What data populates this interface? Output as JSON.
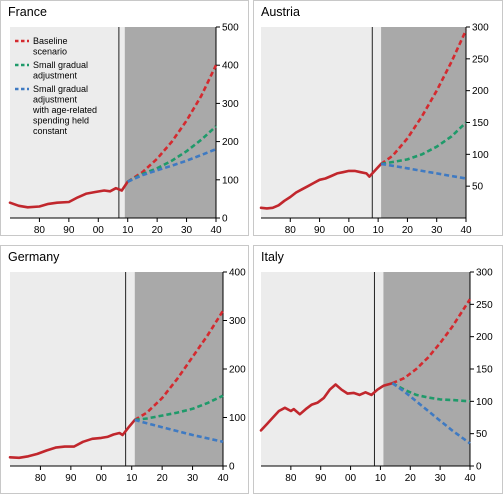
{
  "colors": {
    "historical": "#c1272d",
    "baseline": "#d42a2f",
    "small_gradual": "#1f9a6a",
    "age_related": "#3f7ac2",
    "panel_bg_light": "#ececec",
    "panel_bg_dark": "#a9a9a9"
  },
  "chart_data": [
    {
      "type": "line",
      "title": "France",
      "xlim": [
        1970,
        2040
      ],
      "ylim": [
        0,
        500
      ],
      "x_ticks": [
        80,
        90,
        0,
        10,
        20,
        30,
        40
      ],
      "x_tick_labels": [
        "80",
        "90",
        "00",
        "10",
        "20",
        "30",
        "40"
      ],
      "y_ticks": [
        0,
        100,
        200,
        300,
        400,
        500
      ],
      "y_tick_labels": [
        "0",
        "100",
        "200",
        "300",
        "400",
        "500"
      ],
      "projection_start": 2009,
      "vline_x": 2007,
      "legend": {
        "placement": "top-left",
        "entries": [
          {
            "key": "baseline",
            "lines": [
              "Baseline",
              "scenario"
            ]
          },
          {
            "key": "small_gradual",
            "lines": [
              "Small gradual",
              "adjustment"
            ]
          },
          {
            "key": "age_related",
            "lines": [
              "Small gradual",
              "adjustment",
              "with age-related",
              "spending held",
              "constant"
            ]
          }
        ]
      },
      "series": [
        {
          "name": "Historical",
          "key": "historical",
          "style": "solid",
          "x": [
            1970,
            1973,
            1976,
            1980,
            1983,
            1986,
            1990,
            1993,
            1996,
            1999,
            2002,
            2004,
            2006,
            2008,
            2010
          ],
          "y": [
            40,
            32,
            28,
            30,
            37,
            40,
            42,
            54,
            64,
            68,
            72,
            70,
            78,
            72,
            95
          ]
        },
        {
          "name": "Baseline scenario",
          "key": "baseline",
          "style": "dashed",
          "x": [
            2010,
            2015,
            2020,
            2025,
            2030,
            2035,
            2040
          ],
          "y": [
            95,
            120,
            155,
            200,
            255,
            320,
            400
          ]
        },
        {
          "name": "Small gradual adjustment",
          "key": "small_gradual",
          "style": "dashed",
          "x": [
            2010,
            2015,
            2020,
            2025,
            2030,
            2035,
            2040
          ],
          "y": [
            95,
            115,
            130,
            150,
            175,
            205,
            240
          ]
        },
        {
          "name": "Small gradual adjustment with age-related spending held constant",
          "key": "age_related",
          "style": "dashed",
          "x": [
            2010,
            2015,
            2020,
            2025,
            2030,
            2035,
            2040
          ],
          "y": [
            95,
            112,
            125,
            137,
            150,
            165,
            180
          ]
        }
      ]
    },
    {
      "type": "line",
      "title": "Austria",
      "xlim": [
        1970,
        2040
      ],
      "ylim": [
        0,
        300
      ],
      "x_ticks": [
        80,
        90,
        0,
        10,
        20,
        30,
        40
      ],
      "x_tick_labels": [
        "80",
        "90",
        "00",
        "10",
        "20",
        "30",
        "40"
      ],
      "y_ticks": [
        50,
        100,
        150,
        200,
        250,
        300
      ],
      "y_tick_labels": [
        "50",
        "100",
        "150",
        "200",
        "250",
        "300"
      ],
      "projection_start": 2011,
      "vline_x": 2008,
      "series": [
        {
          "name": "Historical",
          "key": "historical",
          "style": "solid",
          "x": [
            1970,
            1972,
            1974,
            1976,
            1978,
            1980,
            1982,
            1984,
            1986,
            1988,
            1990,
            1992,
            1994,
            1996,
            1998,
            2000,
            2002,
            2004,
            2006,
            2007,
            2009,
            2011
          ],
          "y": [
            16,
            15,
            16,
            20,
            27,
            33,
            40,
            45,
            50,
            55,
            60,
            62,
            66,
            70,
            72,
            74,
            74,
            72,
            70,
            65,
            75,
            85
          ]
        },
        {
          "name": "Baseline scenario",
          "key": "baseline",
          "style": "dashed",
          "x": [
            2011,
            2015,
            2020,
            2025,
            2030,
            2035,
            2040
          ],
          "y": [
            85,
            98,
            125,
            160,
            200,
            245,
            295
          ]
        },
        {
          "name": "Small gradual adjustment",
          "key": "small_gradual",
          "style": "dashed",
          "x": [
            2011,
            2015,
            2020,
            2025,
            2030,
            2035,
            2040
          ],
          "y": [
            85,
            88,
            92,
            100,
            112,
            128,
            150
          ]
        },
        {
          "name": "Small gradual adjustment with age-related spending held constant",
          "key": "age_related",
          "style": "dashed",
          "x": [
            2011,
            2015,
            2020,
            2025,
            2030,
            2035,
            2040
          ],
          "y": [
            85,
            82,
            78,
            74,
            70,
            66,
            62
          ]
        }
      ]
    },
    {
      "type": "line",
      "title": "Germany",
      "xlim": [
        1970,
        2040
      ],
      "ylim": [
        0,
        400
      ],
      "x_ticks": [
        80,
        90,
        0,
        10,
        20,
        30,
        40
      ],
      "x_tick_labels": [
        "80",
        "90",
        "00",
        "10",
        "20",
        "30",
        "40"
      ],
      "y_ticks": [
        0,
        100,
        200,
        300,
        400
      ],
      "y_tick_labels": [
        "0",
        "100",
        "200",
        "300",
        "400"
      ],
      "projection_start": 2011,
      "vline_x": 2008,
      "series": [
        {
          "name": "Historical",
          "key": "historical",
          "style": "solid",
          "x": [
            1970,
            1973,
            1976,
            1979,
            1982,
            1985,
            1988,
            1991,
            1994,
            1997,
            2000,
            2002,
            2004,
            2006,
            2007,
            2009,
            2011
          ],
          "y": [
            18,
            17,
            20,
            25,
            32,
            38,
            40,
            40,
            50,
            56,
            58,
            60,
            65,
            68,
            64,
            80,
            95
          ]
        },
        {
          "name": "Baseline scenario",
          "key": "baseline",
          "style": "dashed",
          "x": [
            2011,
            2015,
            2020,
            2025,
            2030,
            2035,
            2040
          ],
          "y": [
            95,
            110,
            140,
            180,
            225,
            270,
            320
          ]
        },
        {
          "name": "Small gradual adjustment",
          "key": "small_gradual",
          "style": "dashed",
          "x": [
            2011,
            2015,
            2020,
            2025,
            2030,
            2035,
            2040
          ],
          "y": [
            95,
            98,
            104,
            110,
            118,
            130,
            145
          ]
        },
        {
          "name": "Small gradual adjustment with age-related spending held constant",
          "key": "age_related",
          "style": "dashed",
          "x": [
            2011,
            2015,
            2020,
            2025,
            2030,
            2035,
            2040
          ],
          "y": [
            95,
            88,
            80,
            72,
            64,
            57,
            50
          ]
        }
      ]
    },
    {
      "type": "line",
      "title": "Italy",
      "xlim": [
        1970,
        2040
      ],
      "ylim": [
        0,
        300
      ],
      "x_ticks": [
        80,
        90,
        0,
        10,
        20,
        30,
        40
      ],
      "x_tick_labels": [
        "80",
        "90",
        "00",
        "10",
        "20",
        "30",
        "40"
      ],
      "y_ticks": [
        0,
        50,
        100,
        150,
        200,
        250,
        300
      ],
      "y_tick_labels": [
        "0",
        "50",
        "100",
        "150",
        "200",
        "250",
        "300"
      ],
      "projection_start": 2011,
      "vline_x": 2008,
      "series": [
        {
          "name": "Historical",
          "key": "historical",
          "style": "solid",
          "x": [
            1970,
            1972,
            1974,
            1976,
            1978,
            1980,
            1981,
            1983,
            1985,
            1987,
            1989,
            1991,
            1993,
            1995,
            1997,
            1999,
            2001,
            2003,
            2005,
            2007,
            2009,
            2011,
            2014
          ],
          "y": [
            55,
            65,
            75,
            85,
            90,
            85,
            88,
            80,
            88,
            95,
            98,
            105,
            118,
            126,
            118,
            112,
            113,
            110,
            114,
            110,
            118,
            124,
            128
          ]
        },
        {
          "name": "Baseline scenario",
          "key": "baseline",
          "style": "dashed",
          "x": [
            2014,
            2018,
            2022,
            2026,
            2030,
            2034,
            2040
          ],
          "y": [
            128,
            136,
            150,
            168,
            190,
            215,
            258
          ]
        },
        {
          "name": "Small gradual adjustment",
          "key": "small_gradual",
          "style": "dashed",
          "x": [
            2014,
            2018,
            2022,
            2026,
            2030,
            2034,
            2040
          ],
          "y": [
            128,
            118,
            110,
            106,
            103,
            102,
            100
          ]
        },
        {
          "name": "Small gradual adjustment with age-related spending held constant",
          "key": "age_related",
          "style": "dashed",
          "x": [
            2014,
            2018,
            2022,
            2026,
            2030,
            2034,
            2040
          ],
          "y": [
            128,
            115,
            100,
            85,
            70,
            55,
            35
          ]
        }
      ]
    }
  ]
}
